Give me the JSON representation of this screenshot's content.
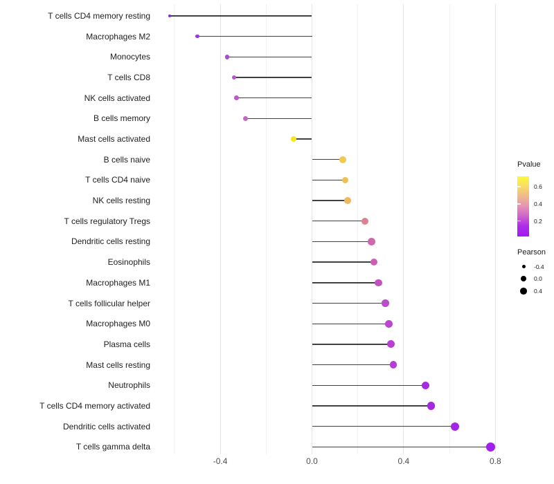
{
  "chart_data": {
    "type": "scatter",
    "subtype": "lollipop",
    "title": "",
    "xlabel": "",
    "ylabel": "",
    "categories": [
      "T cells CD4 memory resting",
      "Macrophages M2",
      "Monocytes",
      "T cells CD8",
      "NK cells activated",
      "B cells memory",
      "Mast cells activated",
      "B cells naive",
      "T cells CD4 naive",
      "NK cells resting",
      "T cells regulatory  Tregs",
      "Dendritic cells resting",
      "Eosinophils",
      "Macrophages M1",
      "T cells follicular helper",
      "Macrophages M0",
      "Plasma cells",
      "Mast cells resting",
      "Neutrophils",
      "T cells CD4 memory activated",
      "Dendritic cells activated",
      "T cells gamma delta"
    ],
    "series": [
      {
        "name": "Pearson",
        "values": [
          -0.62,
          -0.5,
          -0.37,
          -0.34,
          -0.33,
          -0.29,
          -0.08,
          0.135,
          0.145,
          0.155,
          0.23,
          0.26,
          0.27,
          0.29,
          0.32,
          0.335,
          0.345,
          0.355,
          0.495,
          0.52,
          0.625,
          0.78
        ]
      }
    ],
    "point_colors": [
      "#7B2BE0",
      "#9839DB",
      "#AE49D3",
      "#B757C9",
      "#B85AC8",
      "#C466C2",
      "#F3E71E",
      "#F0CB52",
      "#EFC050",
      "#EDB85E",
      "#DC8191",
      "#CE69AE",
      "#CC5FB1",
      "#C250C1",
      "#BC4ACC",
      "#BA45CE",
      "#B840D0",
      "#B53CD4",
      "#A62CDE",
      "#A529E0",
      "#A226E4",
      "#A021EA"
    ],
    "stem_color": "#404040",
    "xlim": [
      -0.695,
      0.86
    ],
    "x_tick_labels": [
      "-0.4",
      "0.0",
      "0.4",
      "0.8"
    ],
    "x_tick_values": [
      -0.4,
      0.0,
      0.4,
      0.8
    ],
    "x_minor_gridlines": [
      -0.6,
      -0.2,
      0.2,
      0.6
    ],
    "grid": "vertical-only",
    "legend_position": "right",
    "legend": {
      "pvalue": {
        "title": "Pvalue",
        "tick_labels": [
          "0.6",
          "0.4",
          "0.2"
        ],
        "tick_values": [
          0.6,
          0.4,
          0.2
        ],
        "gradient_top_to_bottom": [
          "#FCF93B",
          "#F8DC66",
          "#F0B88C",
          "#E493B5",
          "#CE62CC",
          "#AC2BEA",
          "#A21AF7"
        ]
      },
      "pearson": {
        "title": "Pearson",
        "items": [
          {
            "label": "-0.4",
            "value": -0.4
          },
          {
            "label": "0.0",
            "value": 0.0
          },
          {
            "label": "0.4",
            "value": 0.4
          }
        ],
        "dot_color": "#000000"
      }
    }
  }
}
